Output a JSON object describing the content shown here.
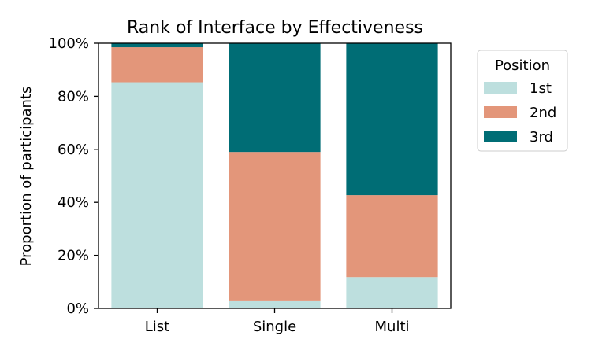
{
  "chart_data": {
    "type": "bar",
    "stacked": true,
    "title": "Rank of Interface by Effectiveness",
    "xlabel": "",
    "ylabel": "Proportion of participants",
    "ylim": [
      0,
      1
    ],
    "yticks": [
      "0%",
      "20%",
      "40%",
      "60%",
      "80%",
      "100%"
    ],
    "categories": [
      "List",
      "Single",
      "Multi"
    ],
    "series": [
      {
        "name": "1st",
        "color": "#bddfde",
        "values": [
          0.853,
          0.03,
          0.118
        ]
      },
      {
        "name": "2nd",
        "color": "#e3967a",
        "values": [
          0.132,
          0.56,
          0.309
        ]
      },
      {
        "name": "3rd",
        "color": "#006d75",
        "values": [
          0.015,
          0.41,
          0.573
        ]
      }
    ],
    "legend": {
      "title": "Position",
      "placement": "outside-right-top"
    },
    "grid": false
  }
}
